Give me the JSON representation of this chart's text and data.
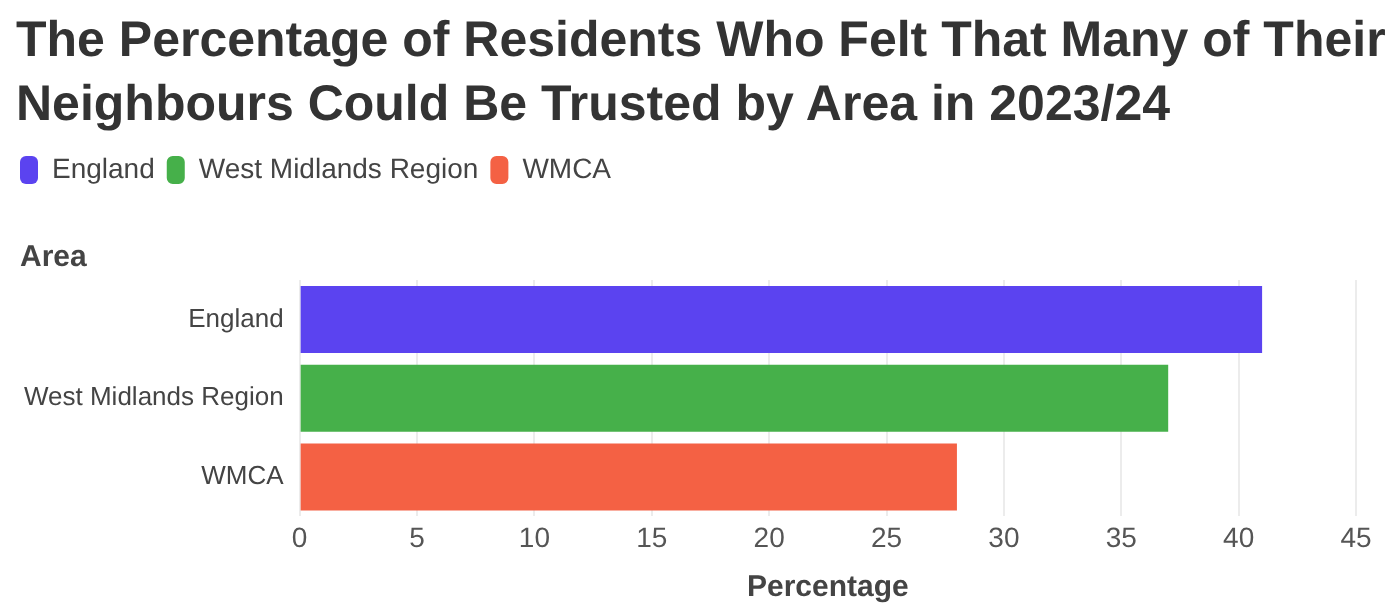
{
  "chart_data": {
    "type": "bar",
    "orientation": "horizontal",
    "title": "The Percentage of Residents Who Felt That Many of Their Neighbours Could Be Trusted by Area in 2023/24",
    "ylabel": "Area",
    "xlabel": "Percentage",
    "categories": [
      "England",
      "West Midlands Region",
      "WMCA"
    ],
    "series": [
      {
        "name": "England",
        "color": "#5b43f0",
        "values": [
          41,
          null,
          null
        ]
      },
      {
        "name": "West Midlands Region",
        "color": "#46b04a",
        "values": [
          null,
          37,
          null
        ]
      },
      {
        "name": "WMCA",
        "color": "#f46144",
        "values": [
          null,
          null,
          28
        ]
      }
    ],
    "xlim": [
      0,
      45
    ],
    "xticks": [
      0,
      5,
      10,
      15,
      20,
      25,
      30,
      35,
      40,
      45
    ],
    "grid": "x",
    "legend": "top left"
  }
}
